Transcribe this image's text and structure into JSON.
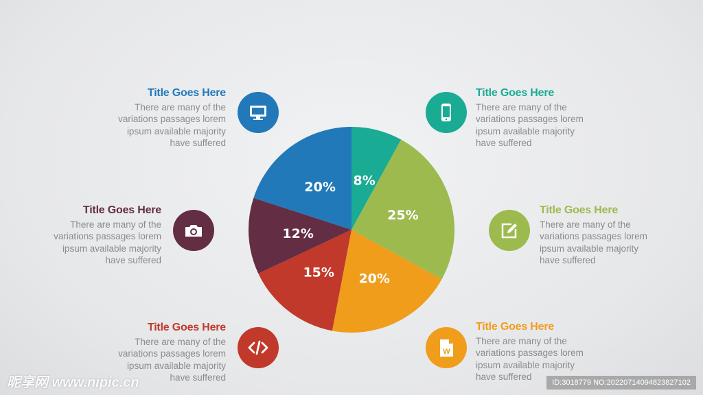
{
  "chart_data": {
    "type": "pie",
    "start": "top",
    "direction": "clockwise",
    "categories": [
      "teal",
      "green",
      "orange",
      "red",
      "maroon",
      "blue"
    ],
    "values": [
      8,
      25,
      20,
      15,
      12,
      20
    ],
    "labels": [
      "8%",
      "25%",
      "20%",
      "15%",
      "12%",
      "20%"
    ],
    "colors": [
      "#1aab94",
      "#9dba4f",
      "#f09d1c",
      "#c0392b",
      "#632d44",
      "#2179b9"
    ]
  },
  "items": [
    {
      "title": "Title Goes Here",
      "desc": [
        "There are many of the",
        "variations passages lorem",
        "ipsum available majority",
        "have suffered"
      ],
      "color": "#2179b9",
      "icon": "monitor-icon"
    },
    {
      "title": "Title Goes Here",
      "desc": [
        "There are many of the",
        "variations passages lorem",
        "ipsum available majority",
        "have suffered"
      ],
      "color": "#1aab94",
      "icon": "smartphone-icon"
    },
    {
      "title": "Title Goes Here",
      "desc": [
        "There are many of the",
        "variations passages lorem",
        "ipsum available majority",
        "have suffered"
      ],
      "color": "#632d44",
      "icon": "camera-icon"
    },
    {
      "title": "Title Goes Here",
      "desc": [
        "There are many of the",
        "variations passages lorem",
        "ipsum available majority",
        "have suffered"
      ],
      "color": "#9dba4f",
      "icon": "edit-icon"
    },
    {
      "title": "Title Goes Here",
      "desc": [
        "There are many of the",
        "variations passages lorem",
        "ipsum available majority",
        "have suffered"
      ],
      "color": "#c0392b",
      "icon": "code-icon"
    },
    {
      "title": "Title Goes Here",
      "desc": [
        "There are many of the",
        "variations passages lorem",
        "ipsum available majority",
        "have suffered"
      ],
      "color": "#f09d1c",
      "icon": "word-document-icon"
    }
  ],
  "watermark": {
    "logo": "昵享网 www.nipic.cn",
    "id": "ID:3018779 NO:20220714094823827102"
  }
}
